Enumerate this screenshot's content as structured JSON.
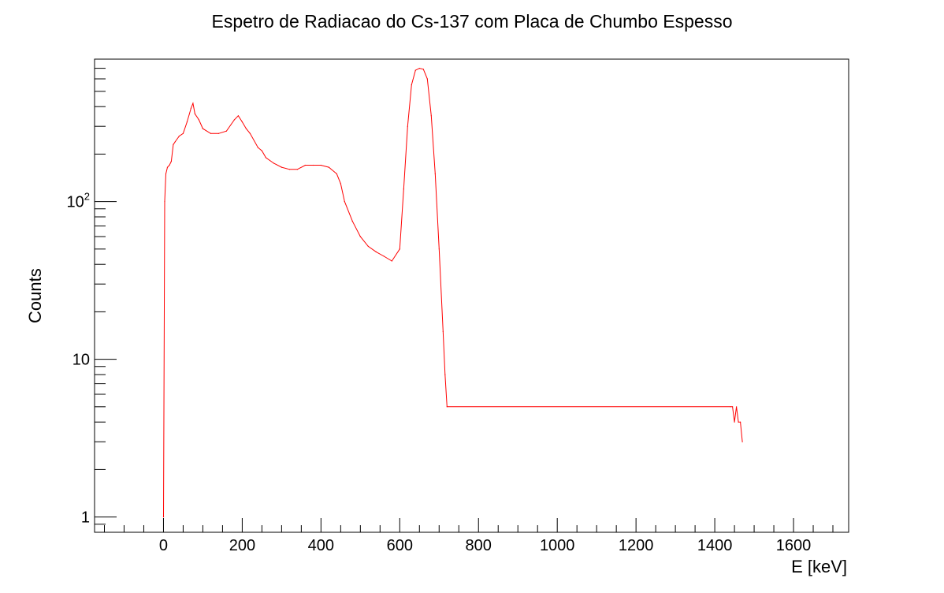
{
  "chart_data": {
    "type": "histogram",
    "title": "Espetro de Radiacao do Cs-137 com Placa de Chumbo Espesso",
    "xlabel": "E [keV]",
    "ylabel": "Counts",
    "xlim": [
      -175,
      1740
    ],
    "ylim": [
      0.8,
      800
    ],
    "yscale": "log",
    "grid": false,
    "x_ticks": [
      0,
      200,
      400,
      600,
      800,
      1000,
      1200,
      1400,
      1600
    ],
    "x_tick_labels": [
      "0",
      "200",
      "400",
      "600",
      "800",
      "1000",
      "1200",
      "1400",
      "1600"
    ],
    "y_ticks": [
      {
        "value": 1,
        "base": "1",
        "exp": ""
      },
      {
        "value": 10,
        "base": "10",
        "exp": ""
      },
      {
        "value": 100,
        "base": "10",
        "exp": "2"
      }
    ],
    "series_color": "#ff0000",
    "series": [
      {
        "x": [
          0,
          3,
          6,
          10,
          15,
          20,
          25,
          30,
          40,
          50,
          60,
          70,
          75,
          80,
          90,
          100,
          120,
          140,
          160,
          180,
          190,
          200,
          210,
          220,
          240,
          250,
          260,
          280,
          300,
          320,
          340,
          360,
          380,
          400,
          420,
          440,
          450,
          460,
          480,
          500,
          520,
          540,
          560,
          580,
          600,
          610,
          620,
          630,
          640,
          650,
          660,
          670,
          680,
          690,
          700,
          710,
          715,
          720,
          1440,
          1445,
          1450,
          1455,
          1460,
          1465,
          1470
        ],
        "y": [
          1,
          100,
          150,
          165,
          170,
          180,
          230,
          240,
          260,
          270,
          320,
          390,
          420,
          360,
          330,
          290,
          270,
          270,
          280,
          330,
          350,
          320,
          290,
          270,
          220,
          210,
          190,
          175,
          165,
          160,
          160,
          170,
          170,
          170,
          165,
          150,
          130,
          100,
          75,
          60,
          52,
          48,
          45,
          42,
          50,
          120,
          300,
          550,
          680,
          700,
          690,
          600,
          350,
          150,
          50,
          15,
          8,
          5,
          5,
          5,
          4,
          5,
          4,
          4,
          3
        ]
      }
    ]
  }
}
